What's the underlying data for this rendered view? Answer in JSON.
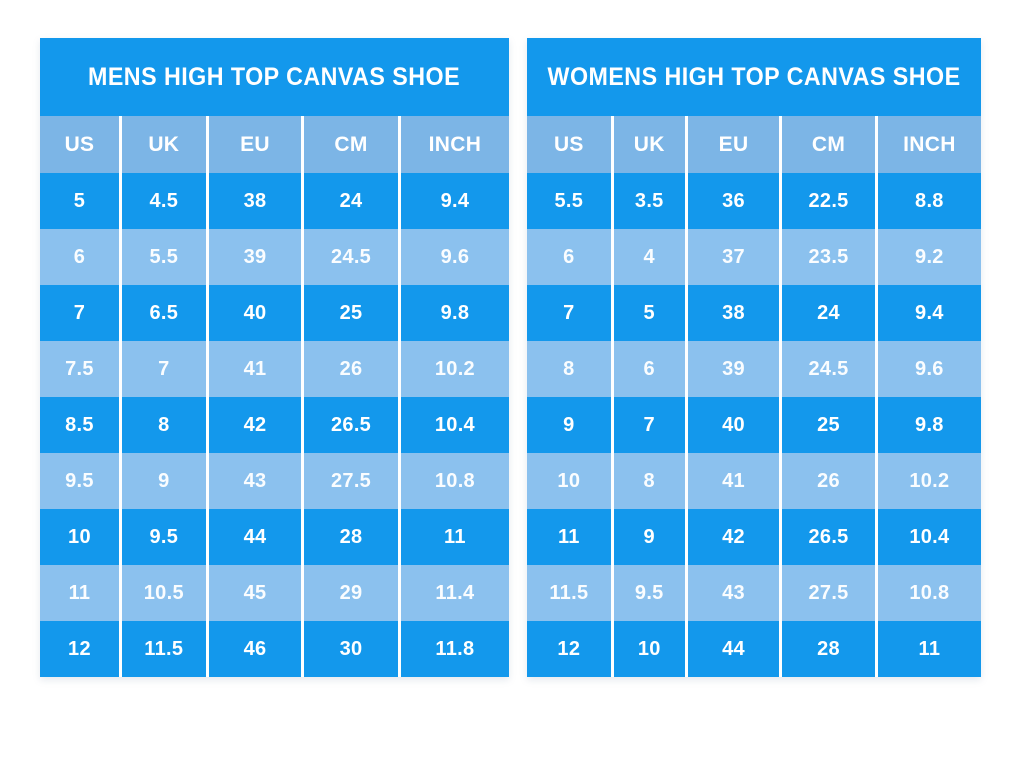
{
  "colors": {
    "page-bg": "#ffffff",
    "table-dark": "#1398ec",
    "table-light": "#8bc1ee",
    "table-header": "#7cb5e6",
    "table-text": "#ffffff"
  },
  "chart_data": [
    {
      "type": "table",
      "title": "MENS HIGH TOP CANVAS SHOE",
      "columns": [
        "US",
        "UK",
        "EU",
        "CM",
        "INCH"
      ],
      "rows": [
        [
          "5",
          "4.5",
          "38",
          "24",
          "9.4"
        ],
        [
          "6",
          "5.5",
          "39",
          "24.5",
          "9.6"
        ],
        [
          "7",
          "6.5",
          "40",
          "25",
          "9.8"
        ],
        [
          "7.5",
          "7",
          "41",
          "26",
          "10.2"
        ],
        [
          "8.5",
          "8",
          "42",
          "26.5",
          "10.4"
        ],
        [
          "9.5",
          "9",
          "43",
          "27.5",
          "10.8"
        ],
        [
          "10",
          "9.5",
          "44",
          "28",
          "11"
        ],
        [
          "11",
          "10.5",
          "45",
          "29",
          "11.4"
        ],
        [
          "12",
          "11.5",
          "46",
          "30",
          "11.8"
        ]
      ],
      "layout": {
        "striping": "alternating dark/light starting dark",
        "legend": "none",
        "grid": "white column dividers only"
      }
    },
    {
      "type": "table",
      "title": "WOMENS HIGH TOP CANVAS SHOE",
      "columns": [
        "US",
        "UK",
        "EU",
        "CM",
        "INCH"
      ],
      "rows": [
        [
          "5.5",
          "3.5",
          "36",
          "22.5",
          "8.8"
        ],
        [
          "6",
          "4",
          "37",
          "23.5",
          "9.2"
        ],
        [
          "7",
          "5",
          "38",
          "24",
          "9.4"
        ],
        [
          "8",
          "6",
          "39",
          "24.5",
          "9.6"
        ],
        [
          "9",
          "7",
          "40",
          "25",
          "9.8"
        ],
        [
          "10",
          "8",
          "41",
          "26",
          "10.2"
        ],
        [
          "11",
          "9",
          "42",
          "26.5",
          "10.4"
        ],
        [
          "11.5",
          "9.5",
          "43",
          "27.5",
          "10.8"
        ],
        [
          "12",
          "10",
          "44",
          "28",
          "11"
        ]
      ],
      "layout": {
        "striping": "alternating dark/light starting dark",
        "legend": "none",
        "grid": "white column dividers only"
      }
    }
  ]
}
